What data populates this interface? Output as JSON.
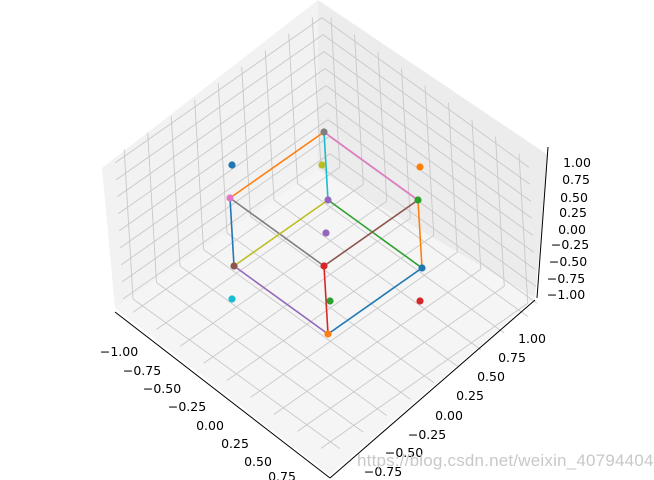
{
  "chart_data": {
    "type": "scatter3d",
    "title": "",
    "xlabel": "",
    "ylabel": "",
    "zlabel": "",
    "view": {
      "elev": 45,
      "azim": 45
    },
    "xlim": [
      -1,
      1
    ],
    "ylim": [
      -1,
      1
    ],
    "zlim": [
      -1,
      1
    ],
    "grid": true,
    "x_ticks": [
      "−1.00",
      "−0.75",
      "−0.50",
      "−0.25",
      "0.00",
      "0.25",
      "0.50",
      "0.75"
    ],
    "y_ticks": [
      "−0.75",
      "−0.50",
      "−0.25",
      "0.00",
      "0.25",
      "0.50",
      "0.75",
      "1.00"
    ],
    "z_ticks": [
      "−1.00",
      "−0.75",
      "−0.50",
      "−0.25",
      "0.00",
      "0.25",
      "0.50",
      "0.75",
      "1.00"
    ],
    "description": "Unit-cube wireframe: 8 vertices at (±0.5, ±0.5, ±0.5) connected by 12 colored edges, plus 6 face-center points at (±1,0,0), (0,±1,0), (0,0,±1)",
    "vertices": [
      {
        "x": -0.5,
        "y": -0.5,
        "z": -0.5,
        "color": "#ff7f0e"
      },
      {
        "x": 0.5,
        "y": -0.5,
        "z": -0.5,
        "color": "#8c564b"
      },
      {
        "x": -0.5,
        "y": 0.5,
        "z": -0.5,
        "color": "#1f77b4"
      },
      {
        "x": -0.5,
        "y": -0.5,
        "z": 0.5,
        "color": "#d62728"
      },
      {
        "x": 0.5,
        "y": 0.5,
        "z": -0.5,
        "color": "#9467bd"
      },
      {
        "x": 0.5,
        "y": -0.5,
        "z": 0.5,
        "color": "#e377c2"
      },
      {
        "x": -0.5,
        "y": 0.5,
        "z": 0.5,
        "color": "#2ca02c"
      },
      {
        "x": 0.5,
        "y": 0.5,
        "z": 0.5,
        "color": "#7f7f7f"
      }
    ],
    "edges": [
      {
        "from": [
          -0.5,
          0.5,
          -0.5
        ],
        "to": [
          -0.5,
          -0.5,
          -0.5
        ],
        "color": "#1f77b4"
      },
      {
        "from": [
          -0.5,
          0.5,
          -0.5
        ],
        "to": [
          -0.5,
          0.5,
          0.5
        ],
        "color": "#ff7f0e"
      },
      {
        "from": [
          -0.5,
          0.5,
          -0.5
        ],
        "to": [
          0.5,
          0.5,
          -0.5
        ],
        "color": "#2ca02c"
      },
      {
        "from": [
          -0.5,
          -0.5,
          -0.5
        ],
        "to": [
          -0.5,
          -0.5,
          0.5
        ],
        "color": "#d62728"
      },
      {
        "from": [
          -0.5,
          -0.5,
          -0.5
        ],
        "to": [
          0.5,
          -0.5,
          -0.5
        ],
        "color": "#9467bd"
      },
      {
        "from": [
          -0.5,
          0.5,
          0.5
        ],
        "to": [
          -0.5,
          -0.5,
          0.5
        ],
        "color": "#8c564b"
      },
      {
        "from": [
          -0.5,
          0.5,
          0.5
        ],
        "to": [
          0.5,
          0.5,
          0.5
        ],
        "color": "#e377c2"
      },
      {
        "from": [
          -0.5,
          -0.5,
          0.5
        ],
        "to": [
          0.5,
          -0.5,
          0.5
        ],
        "color": "#7f7f7f"
      },
      {
        "from": [
          0.5,
          -0.5,
          -0.5
        ],
        "to": [
          0.5,
          -0.5,
          0.5
        ],
        "color": "#1f77b4"
      },
      {
        "from": [
          0.5,
          0.5,
          0.5
        ],
        "to": [
          0.5,
          -0.5,
          0.5
        ],
        "color": "#ff7f0e"
      },
      {
        "from": [
          0.5,
          0.5,
          -0.5
        ],
        "to": [
          0.5,
          -0.5,
          -0.5
        ],
        "color": "#bcbd22"
      },
      {
        "from": [
          0.5,
          0.5,
          -0.5
        ],
        "to": [
          0.5,
          0.5,
          0.5
        ],
        "color": "#17becf"
      }
    ],
    "face_centers": [
      {
        "x": -1,
        "y": 0,
        "z": 0,
        "color": "#d62728"
      },
      {
        "x": 1,
        "y": 0,
        "z": 0,
        "color": "#1f77b4"
      },
      {
        "x": 0,
        "y": -1,
        "z": 0,
        "color": "#17becf"
      },
      {
        "x": 0,
        "y": 1,
        "z": 0,
        "color": "#ff7f0e"
      },
      {
        "x": 0,
        "y": 0,
        "z": -1,
        "color": "#2ca02c"
      },
      {
        "x": 0,
        "y": 0,
        "z": 1,
        "color": "#bcbd22"
      },
      {
        "x": 0,
        "y": 0,
        "z": 0,
        "color": "#9467bd",
        "note": "center point"
      }
    ]
  },
  "watermark": "https://blog.csdn.net/weixin_40794404"
}
